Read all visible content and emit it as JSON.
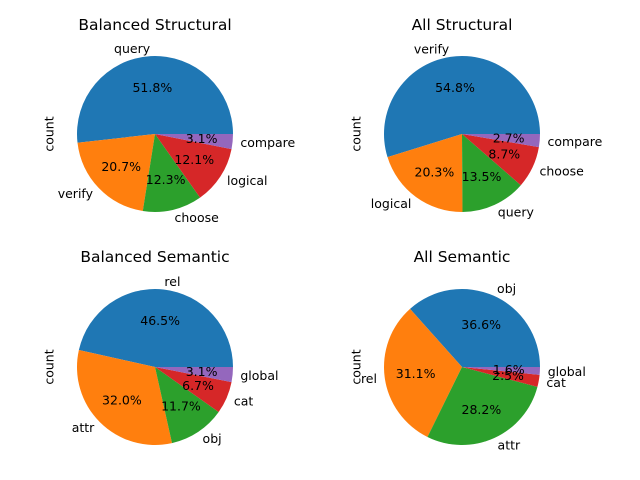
{
  "chart_data": [
    {
      "type": "pie",
      "title": "Balanced Structural",
      "ylabel": "count",
      "categories": [
        "query",
        "verify",
        "choose",
        "logical",
        "compare"
      ],
      "values": [
        51.8,
        20.7,
        12.3,
        12.1,
        3.1
      ],
      "percent_labels": [
        "51.8%",
        "20.7%",
        "12.3%",
        "12.1%",
        "3.1%"
      ],
      "colors": [
        "#1f77b4",
        "#ff7f0e",
        "#2ca02c",
        "#d62728",
        "#9467bd"
      ]
    },
    {
      "type": "pie",
      "title": "All Structural",
      "ylabel": "count",
      "categories": [
        "verify",
        "logical",
        "query",
        "choose",
        "compare"
      ],
      "values": [
        54.8,
        20.3,
        13.5,
        8.7,
        2.7
      ],
      "percent_labels": [
        "54.8%",
        "20.3%",
        "13.5%",
        "8.7%",
        "2.7%"
      ],
      "colors": [
        "#1f77b4",
        "#ff7f0e",
        "#2ca02c",
        "#d62728",
        "#9467bd"
      ]
    },
    {
      "type": "pie",
      "title": "Balanced Semantic",
      "ylabel": "count",
      "categories": [
        "rel",
        "attr",
        "obj",
        "cat",
        "global"
      ],
      "values": [
        46.5,
        32.0,
        11.7,
        6.7,
        3.1
      ],
      "percent_labels": [
        "46.5%",
        "32.0%",
        "11.7%",
        "6.7%",
        "3.1%"
      ],
      "colors": [
        "#1f77b4",
        "#ff7f0e",
        "#2ca02c",
        "#d62728",
        "#9467bd"
      ]
    },
    {
      "type": "pie",
      "title": "All Semantic",
      "ylabel": "count",
      "categories": [
        "obj",
        "rel",
        "attr",
        "cat",
        "global"
      ],
      "values": [
        36.6,
        31.1,
        28.2,
        2.5,
        1.6
      ],
      "percent_labels": [
        "36.6%",
        "31.1%",
        "28.2%",
        "2.5%",
        "1.6%"
      ],
      "colors": [
        "#1f77b4",
        "#ff7f0e",
        "#2ca02c",
        "#d62728",
        "#9467bd"
      ]
    }
  ]
}
